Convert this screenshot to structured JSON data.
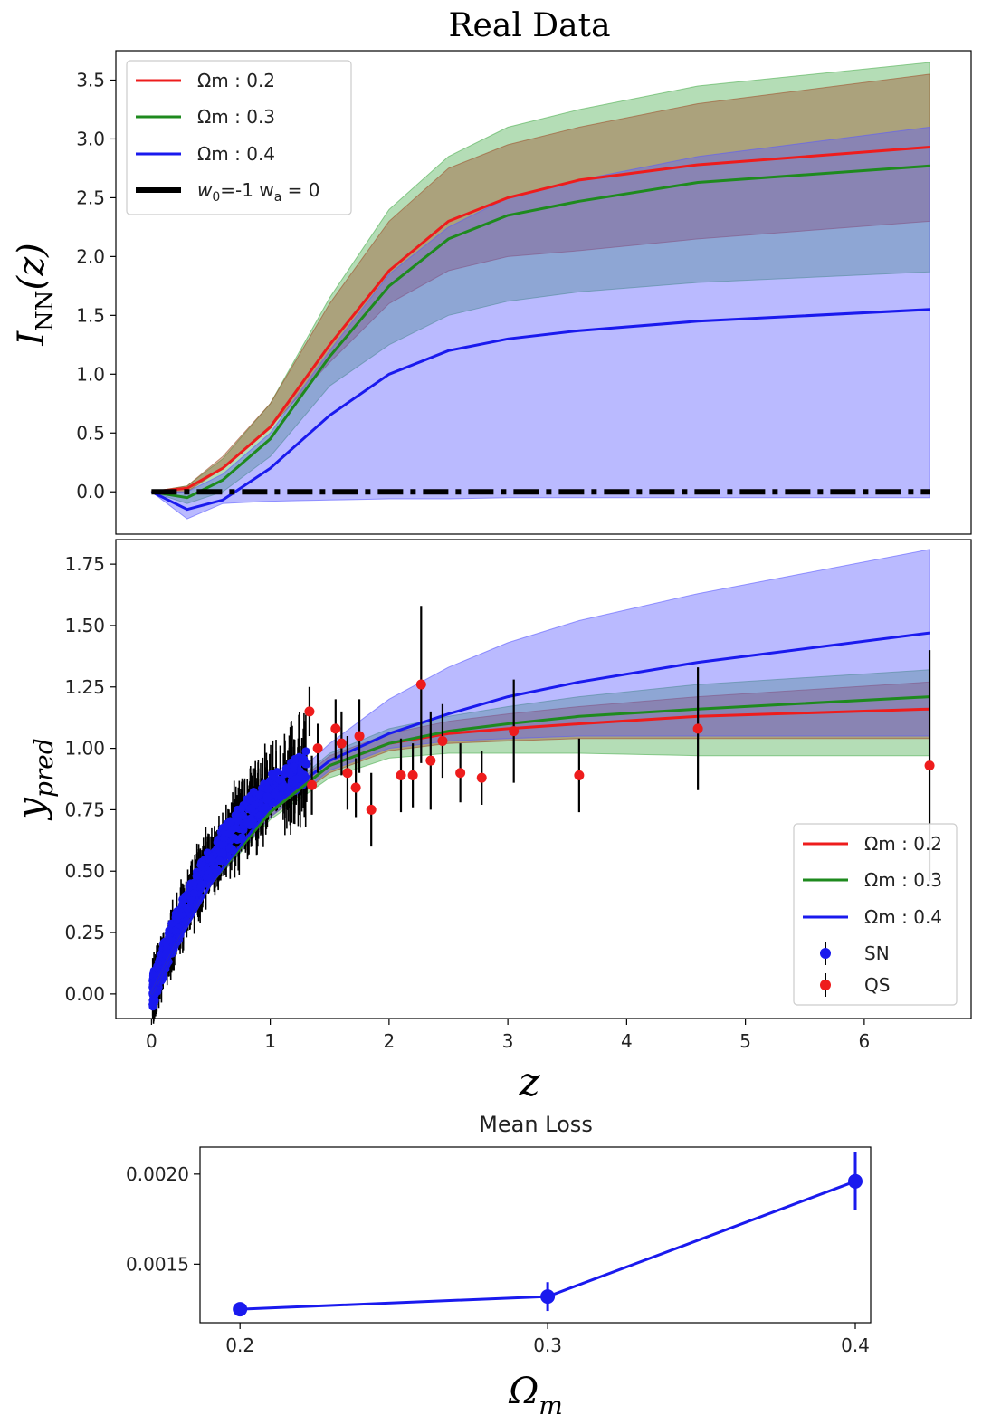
{
  "figure": {
    "title": "Real Data"
  },
  "colors": {
    "red": "#ee1c1c",
    "green": "#1e8a1e",
    "blue": "#1a1aee",
    "black": "#000000",
    "band_green": "#4caf50",
    "band_red": "#a0522d",
    "band_blue": "#5a5aff"
  },
  "chart_data": [
    {
      "id": "top",
      "type": "line",
      "title": "",
      "xlabel": "",
      "ylabel": "I_NN(z)",
      "ylabel_main": "I",
      "ylabel_sub": "NN",
      "ylabel_tail": "(z)",
      "xlim": [
        -0.3,
        6.9
      ],
      "ylim": [
        -0.36,
        3.75
      ],
      "yticks": [
        "0.0",
        "0.5",
        "1.0",
        "1.5",
        "2.0",
        "2.5",
        "3.0",
        "3.5"
      ],
      "ytick_values": [
        0,
        0.5,
        1.0,
        1.5,
        2.0,
        2.5,
        3.0,
        3.5
      ],
      "legend_position": "top-left",
      "x": [
        0,
        0.3,
        0.6,
        1.0,
        1.5,
        2.0,
        2.5,
        3.0,
        3.6,
        4.6,
        6.55
      ],
      "series": [
        {
          "name": "Ωm : 0.2",
          "color": "red",
          "values": [
            0,
            0.03,
            0.2,
            0.55,
            1.25,
            1.88,
            2.3,
            2.5,
            2.65,
            2.78,
            2.93
          ]
        },
        {
          "name": "Ωm : 0.3",
          "color": "green",
          "values": [
            0,
            -0.05,
            0.1,
            0.45,
            1.15,
            1.75,
            2.15,
            2.35,
            2.47,
            2.63,
            2.77
          ]
        },
        {
          "name": "Ωm : 0.4",
          "color": "blue",
          "values": [
            0,
            -0.15,
            -0.07,
            0.2,
            0.65,
            1.0,
            1.2,
            1.3,
            1.37,
            1.45,
            1.55
          ]
        }
      ],
      "bands": [
        {
          "name": "Ωm : 0.3",
          "color": "band_green",
          "lower": [
            0,
            -0.1,
            0.0,
            0.3,
            0.9,
            1.25,
            1.5,
            1.62,
            1.7,
            1.78,
            1.87
          ],
          "upper": [
            0,
            0.05,
            0.28,
            0.75,
            1.65,
            2.4,
            2.85,
            3.1,
            3.25,
            3.45,
            3.65
          ]
        },
        {
          "name": "Ωm : 0.2",
          "color": "band_red",
          "lower": [
            0,
            0.0,
            0.2,
            0.55,
            1.1,
            1.6,
            1.88,
            2.0,
            2.05,
            2.15,
            2.3
          ],
          "upper": [
            0,
            0.05,
            0.3,
            0.75,
            1.6,
            2.3,
            2.75,
            2.95,
            3.1,
            3.3,
            3.55
          ]
        },
        {
          "name": "Ωm : 0.4",
          "color": "band_blue",
          "lower": [
            0,
            -0.23,
            -0.1,
            -0.08,
            -0.07,
            -0.06,
            -0.06,
            -0.05,
            -0.05,
            -0.05,
            -0.05
          ],
          "upper": [
            0,
            0.0,
            0.15,
            0.5,
            1.2,
            1.85,
            2.25,
            2.5,
            2.65,
            2.85,
            3.1
          ]
        }
      ],
      "reference_line": {
        "name": "w0=-1 wa = 0",
        "label_w0": "w",
        "sub0": "0",
        "label_mid": "=-1 w",
        "sub_a": "a",
        "label_tail": " = 0",
        "value": 0,
        "x_range": [
          0,
          6.55
        ],
        "style": "dash-dot"
      },
      "legend": [
        {
          "label": "Ωm : 0.2",
          "color": "red"
        },
        {
          "label": "Ωm : 0.3",
          "color": "green"
        },
        {
          "label": "Ωm : 0.4",
          "color": "blue"
        }
      ]
    },
    {
      "id": "middle",
      "type": "line",
      "title": "",
      "xlabel": "z",
      "ylabel": "y_pred",
      "ylabel_main": "y",
      "ylabel_sub": "pred",
      "xlim": [
        -0.3,
        6.9
      ],
      "ylim": [
        -0.1,
        1.85
      ],
      "xticks": [
        "0",
        "1",
        "2",
        "3",
        "4",
        "5",
        "6"
      ],
      "xtick_values": [
        0,
        1,
        2,
        3,
        4,
        5,
        6
      ],
      "yticks": [
        "0.00",
        "0.25",
        "0.50",
        "0.75",
        "1.00",
        "1.25",
        "1.50",
        "1.75"
      ],
      "ytick_values": [
        0,
        0.25,
        0.5,
        0.75,
        1.0,
        1.25,
        1.5,
        1.75
      ],
      "legend_position": "lower-right",
      "x": [
        0,
        0.2,
        0.5,
        1.0,
        1.5,
        2.0,
        2.5,
        3.0,
        3.6,
        4.6,
        6.55
      ],
      "series": [
        {
          "name": "Ωm : 0.2",
          "color": "red",
          "values": [
            0,
            0.19,
            0.45,
            0.74,
            0.93,
            1.02,
            1.06,
            1.08,
            1.1,
            1.13,
            1.16
          ]
        },
        {
          "name": "Ωm : 0.3",
          "color": "green",
          "values": [
            0,
            0.19,
            0.45,
            0.74,
            0.93,
            1.02,
            1.07,
            1.1,
            1.13,
            1.16,
            1.21
          ]
        },
        {
          "name": "Ωm : 0.4",
          "color": "blue",
          "values": [
            0,
            0.19,
            0.45,
            0.76,
            0.95,
            1.06,
            1.14,
            1.21,
            1.27,
            1.35,
            1.47
          ]
        }
      ],
      "bands": [
        {
          "name": "Ωm : 0.3",
          "color": "band_green",
          "lower": [
            0,
            0.19,
            0.44,
            0.71,
            0.88,
            0.96,
            0.98,
            0.98,
            0.98,
            0.97,
            0.97
          ],
          "upper": [
            0,
            0.19,
            0.46,
            0.78,
            0.98,
            1.08,
            1.13,
            1.17,
            1.21,
            1.26,
            1.32
          ]
        },
        {
          "name": "Ωm : 0.2",
          "color": "band_red",
          "lower": [
            0,
            0.19,
            0.44,
            0.72,
            0.9,
            0.99,
            1.02,
            1.03,
            1.04,
            1.04,
            1.04
          ],
          "upper": [
            0,
            0.19,
            0.46,
            0.77,
            0.97,
            1.06,
            1.11,
            1.14,
            1.17,
            1.21,
            1.27
          ]
        },
        {
          "name": "Ωm : 0.4",
          "color": "band_blue",
          "lower": [
            0,
            0.19,
            0.44,
            0.72,
            0.91,
            1.0,
            1.03,
            1.04,
            1.05,
            1.05,
            1.05
          ],
          "upper": [
            0,
            0.2,
            0.47,
            0.8,
            1.02,
            1.2,
            1.33,
            1.43,
            1.52,
            1.63,
            1.81
          ]
        }
      ],
      "quasars": [
        {
          "x": 1.33,
          "y": 1.15,
          "err": 0.1
        },
        {
          "x": 1.35,
          "y": 0.85,
          "err": 0.12
        },
        {
          "x": 1.4,
          "y": 1.0,
          "err": 0.1
        },
        {
          "x": 1.55,
          "y": 1.08,
          "err": 0.12
        },
        {
          "x": 1.6,
          "y": 1.02,
          "err": 0.13
        },
        {
          "x": 1.65,
          "y": 0.9,
          "err": 0.15
        },
        {
          "x": 1.72,
          "y": 0.84,
          "err": 0.12
        },
        {
          "x": 1.75,
          "y": 1.05,
          "err": 0.15
        },
        {
          "x": 1.85,
          "y": 0.75,
          "err": 0.15
        },
        {
          "x": 2.1,
          "y": 0.89,
          "err": 0.15
        },
        {
          "x": 2.2,
          "y": 0.89,
          "err": 0.13
        },
        {
          "x": 2.27,
          "y": 1.26,
          "err": 0.32
        },
        {
          "x": 2.35,
          "y": 0.95,
          "err": 0.2
        },
        {
          "x": 2.45,
          "y": 1.03,
          "err": 0.15
        },
        {
          "x": 2.6,
          "y": 0.9,
          "err": 0.12
        },
        {
          "x": 2.78,
          "y": 0.88,
          "err": 0.11
        },
        {
          "x": 3.05,
          "y": 1.07,
          "err": 0.21
        },
        {
          "x": 3.6,
          "y": 0.89,
          "err": 0.15
        },
        {
          "x": 4.6,
          "y": 1.08,
          "err": 0.25
        },
        {
          "x": 6.55,
          "y": 0.93,
          "err": 0.47
        }
      ],
      "legend": [
        {
          "label": "Ωm : 0.2",
          "color": "red",
          "kind": "line"
        },
        {
          "label": "Ωm : 0.3",
          "color": "green",
          "kind": "line"
        },
        {
          "label": "Ωm : 0.4",
          "color": "blue",
          "kind": "line"
        },
        {
          "label": "SN",
          "color": "blue",
          "kind": "errorbar"
        },
        {
          "label": "QS",
          "color": "red",
          "kind": "errorbar"
        }
      ]
    },
    {
      "id": "bottom",
      "type": "line",
      "title": "Mean Loss",
      "xlabel": "Ω_m",
      "xlabel_main": "Ω",
      "xlabel_sub": "m",
      "ylabel": "",
      "xlim": [
        0.187,
        0.405
      ],
      "ylim": [
        0.001175,
        0.00215
      ],
      "xticks": [
        "0.2",
        "0.3",
        "0.4"
      ],
      "xtick_values": [
        0.2,
        0.3,
        0.4
      ],
      "yticks": [
        "0.0015",
        "0.0020"
      ],
      "ytick_values": [
        0.0015,
        0.002
      ],
      "x": [
        0.2,
        0.3,
        0.4
      ],
      "series": [
        {
          "name": "Mean Loss",
          "color": "blue",
          "values": [
            0.00125,
            0.00132,
            0.00196
          ],
          "errors": [
            2e-05,
            8e-05,
            0.00016
          ]
        }
      ]
    }
  ]
}
